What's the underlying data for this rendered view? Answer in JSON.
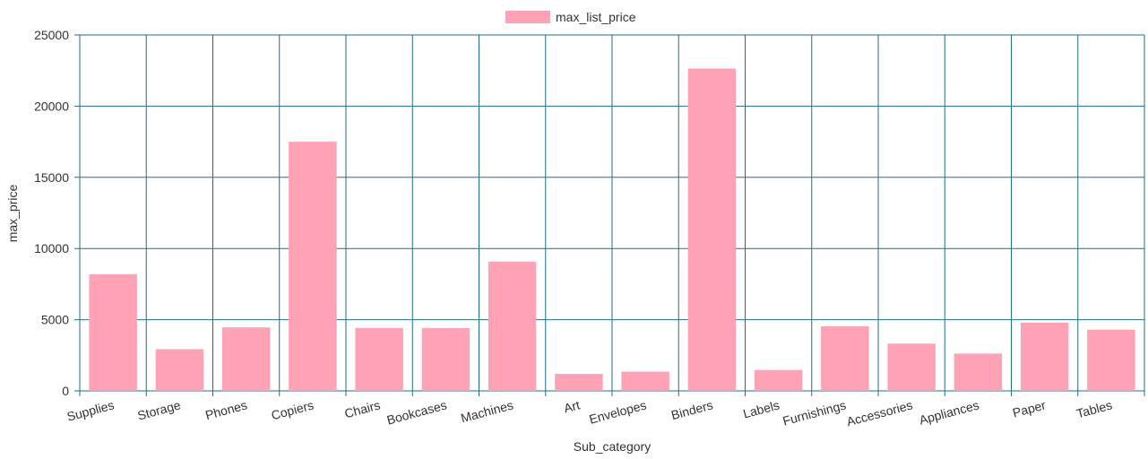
{
  "chart_data": {
    "type": "bar",
    "categories": [
      "Supplies",
      "Storage",
      "Phones",
      "Copiers",
      "Chairs",
      "Bookcases",
      "Machines",
      "Art",
      "Envelopes",
      "Binders",
      "Labels",
      "Furnishings",
      "Accessories",
      "Appliances",
      "Paper",
      "Tables"
    ],
    "series": [
      {
        "name": "max_list_price",
        "values": [
          8190,
          2930,
          4460,
          17500,
          4420,
          4410,
          9080,
          1190,
          1350,
          22640,
          1470,
          4540,
          3320,
          2620,
          4790,
          4300
        ]
      }
    ],
    "xlabel": "Sub_category",
    "ylabel": "max_price",
    "ylim": [
      0,
      25000
    ],
    "yticks": [
      0,
      5000,
      10000,
      15000,
      20000,
      25000
    ],
    "grid": true,
    "legend": "top-center",
    "colors": {
      "bar": "#ffa2b6",
      "grid": "#1f6f8b",
      "text": "#333333"
    }
  }
}
